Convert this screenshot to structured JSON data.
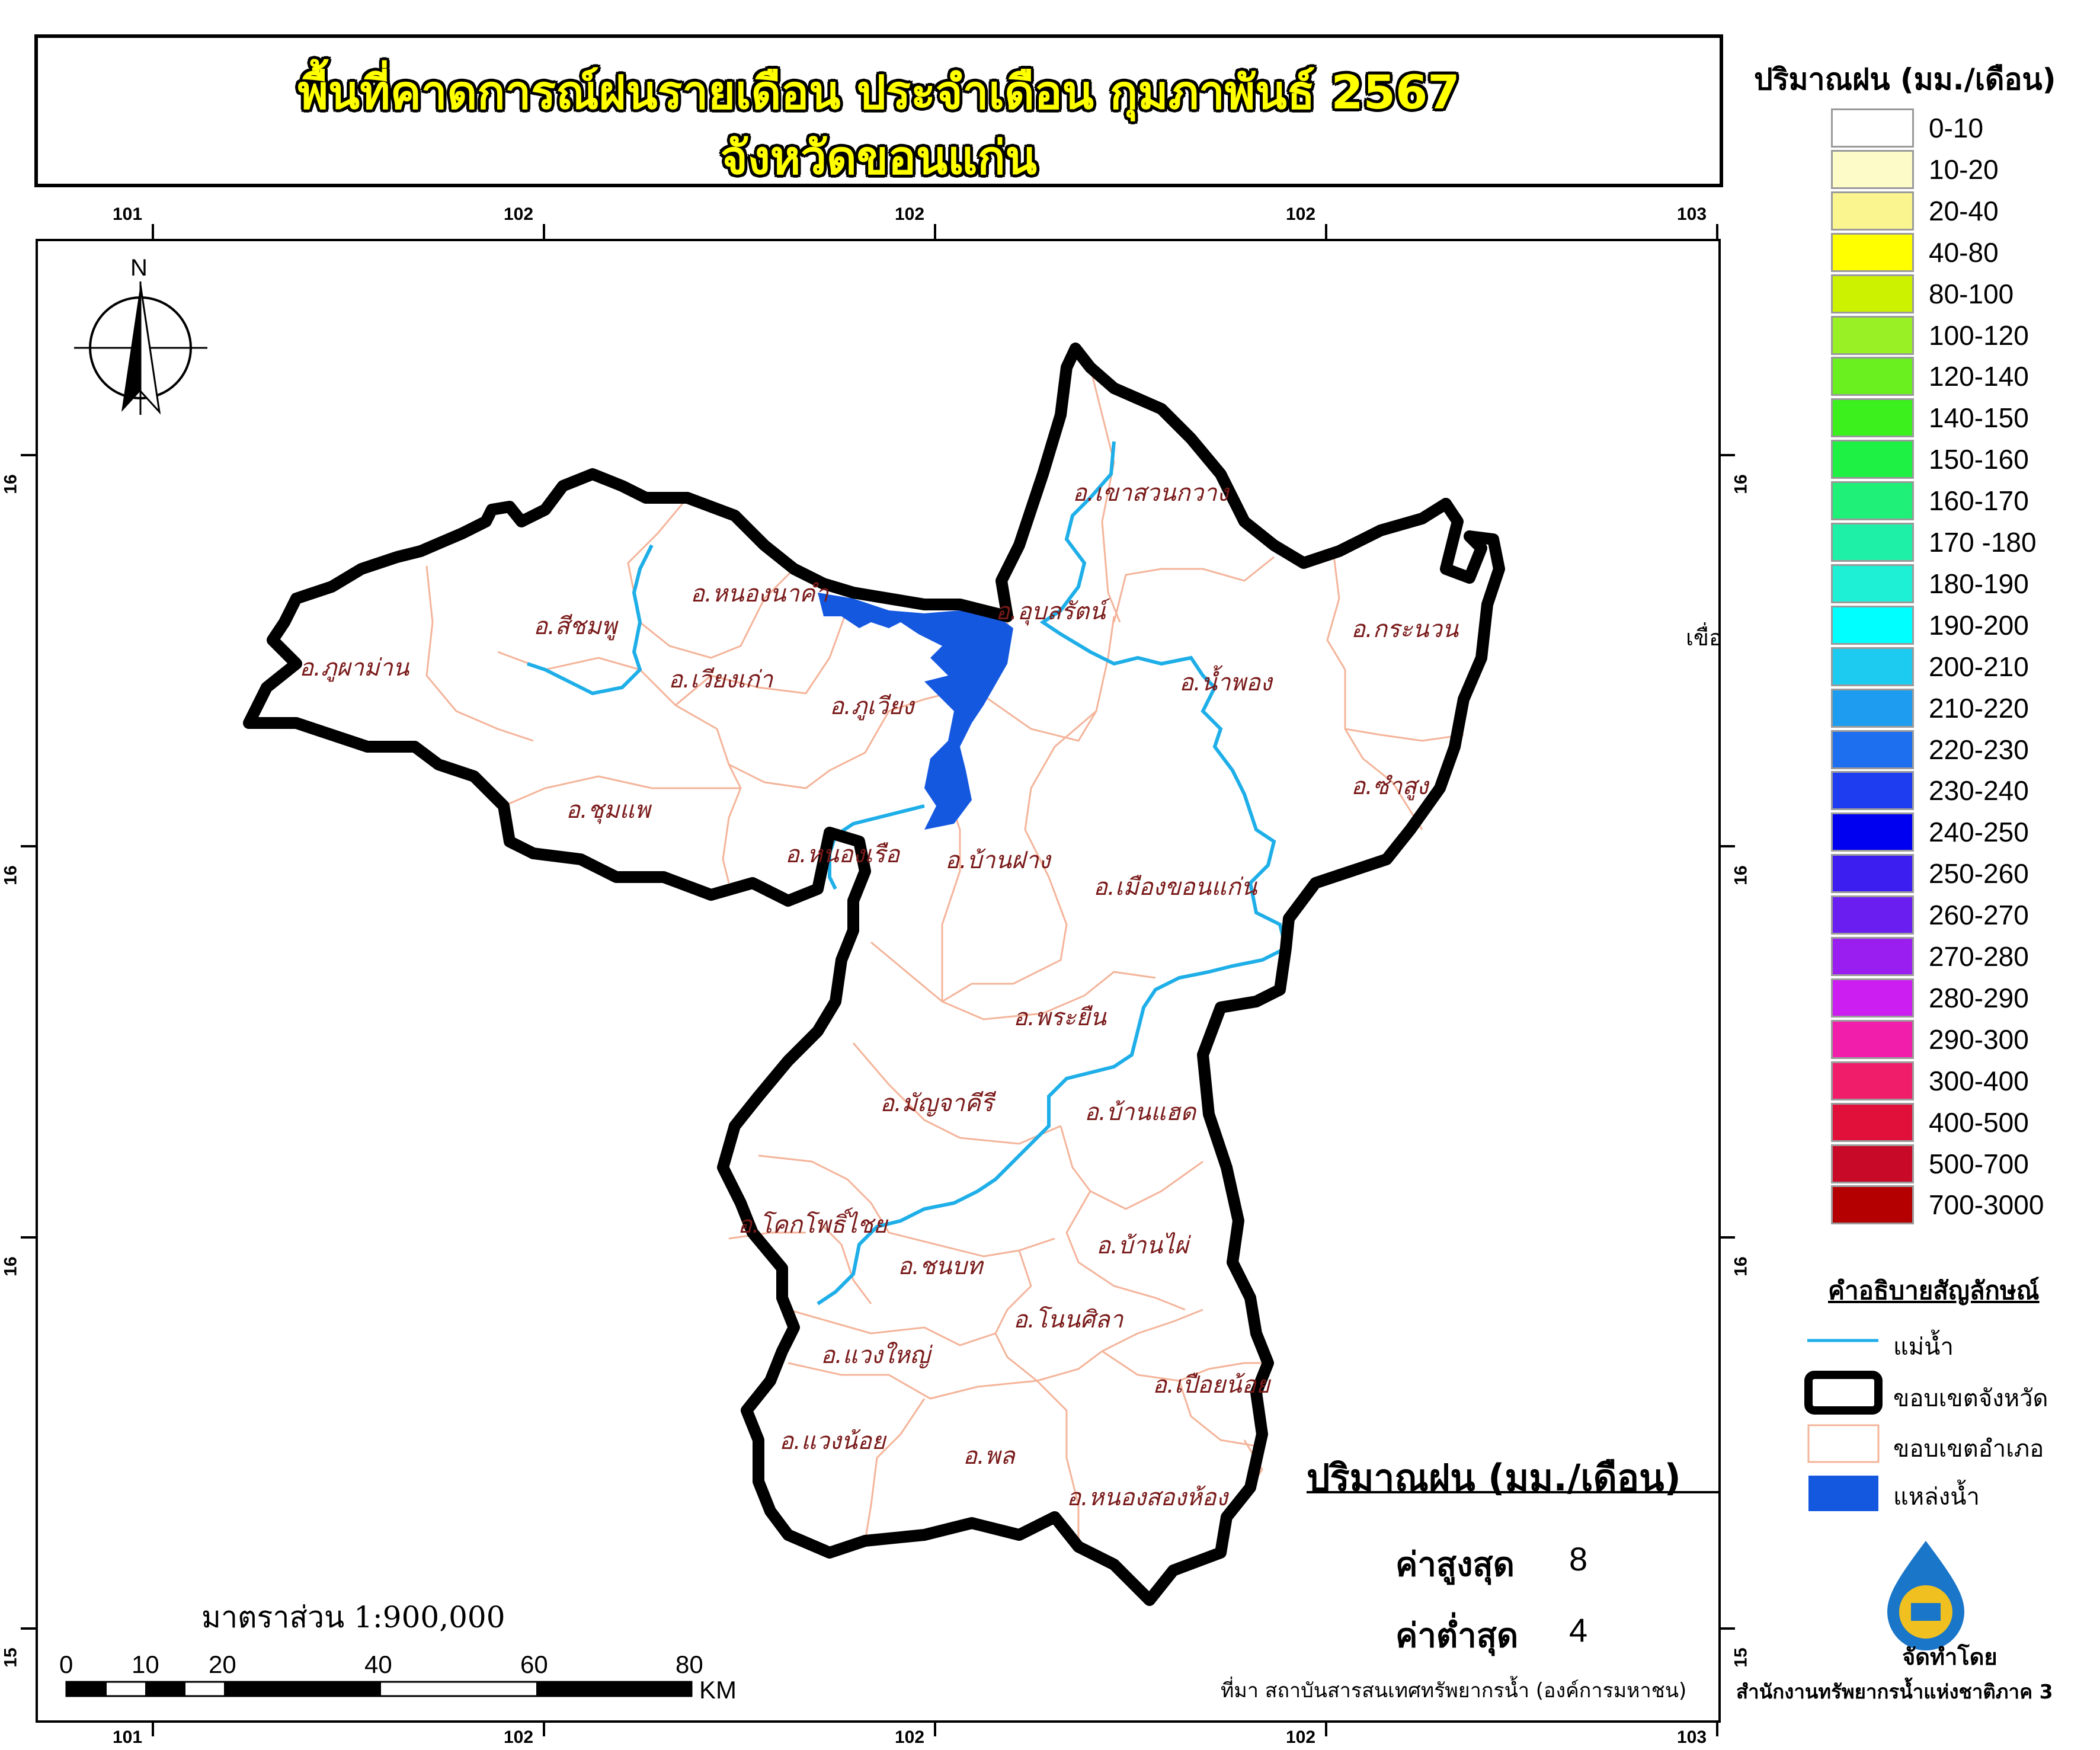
{
  "title": {
    "line1": "พื้นที่คาดการณ์ฝนรายเดือน ประจำเดือน กุมภาพันธ์ 2567",
    "line2": "จังหวัดขอนแก่น"
  },
  "north_arrow": {
    "label": "N"
  },
  "graticule": {
    "top_ticks": [
      "101",
      "102",
      "102",
      "102",
      "103"
    ],
    "bottom_ticks": [
      "101",
      "102",
      "102",
      "102",
      "103"
    ],
    "left_ticks": [
      "16",
      "16",
      "16",
      "15"
    ],
    "right_ticks": [
      "16",
      "16",
      "16",
      "15"
    ]
  },
  "districts": [
    "อ.เขาสวนกวาง",
    "อ.หนองนาคำ",
    "อ.อุบลรัตน์",
    "อ.สีชมพู",
    "อ.กระนวน",
    "อ.ภูผาม่าน",
    "อ.เวียงเก่า",
    "อ.น้ำพอง",
    "อ.ภูเวียง",
    "อ.ซำสูง",
    "อ.ชุมแพ",
    "อ.หนองเรือ",
    "อ.บ้านฝาง",
    "อ.เมืองขอนแก่น",
    "อ.พระยืน",
    "อ.มัญจาคีรี",
    "อ.บ้านแฮด",
    "อ.โคกโพธิ์ไชย",
    "อ.ชนบท",
    "อ.บ้านไผ่",
    "อ.โนนศิลา",
    "อ.แวงใหญ่",
    "อ.เปือยน้อย",
    "อ.แวงน้อย",
    "อ.พล",
    "อ.หนองสองห้อง"
  ],
  "rain_legend": {
    "title": "ปริมาณฝน (มม./เดือน)",
    "classes": [
      {
        "label": "0-10",
        "color": "#ffffff"
      },
      {
        "label": "10-20",
        "color": "#fdfcc8"
      },
      {
        "label": "20-40",
        "color": "#fbf590"
      },
      {
        "label": "40-80",
        "color": "#ffff00"
      },
      {
        "label": "80-100",
        "color": "#ccf200"
      },
      {
        "label": "100-120",
        "color": "#99f024"
      },
      {
        "label": "120-140",
        "color": "#6af01e"
      },
      {
        "label": "140-150",
        "color": "#3bf01c"
      },
      {
        "label": "150-160",
        "color": "#1ef044"
      },
      {
        "label": "160-170",
        "color": "#1ef078"
      },
      {
        "label": "170 -180",
        "color": "#1ef0a8"
      },
      {
        "label": "180-190",
        "color": "#1ef0d6"
      },
      {
        "label": "190-200",
        "color": "#00ffff"
      },
      {
        "label": "200-210",
        "color": "#1ecbf0"
      },
      {
        "label": "210-220",
        "color": "#1e9df0"
      },
      {
        "label": "220-230",
        "color": "#1e6ef0"
      },
      {
        "label": "230-240",
        "color": "#1e3cf0"
      },
      {
        "label": "240-250",
        "color": "#0000f0"
      },
      {
        "label": "250-260",
        "color": "#3c1ef0"
      },
      {
        "label": "260-270",
        "color": "#6a1ef0"
      },
      {
        "label": "270-280",
        "color": "#9a1ef0"
      },
      {
        "label": "280-290",
        "color": "#cc1ef0"
      },
      {
        "label": "290-300",
        "color": "#f01eaa"
      },
      {
        "label": "300-400",
        "color": "#f01e6a"
      },
      {
        "label": "400-500",
        "color": "#e0103a"
      },
      {
        "label": "500-700",
        "color": "#c80a28"
      },
      {
        "label": "700-3000",
        "color": "#b40000"
      }
    ]
  },
  "symbols": {
    "title": "คำอธิบายสัญลักษณ์",
    "river": "แม่น้ำ",
    "province_boundary": "ขอบเขตจังหวัด",
    "district_boundary": "ขอบเขตอำเภอ",
    "water_body": "แหล่งน้ำ"
  },
  "stats": {
    "title": "ปริมาณฝน (มม./เดือน)",
    "max_label": "ค่าสูงสุด",
    "max_value": "8",
    "min_label": "ค่าต่ำสุด",
    "min_value": "4"
  },
  "scale": {
    "text": "มาตราส่วน 1:900,000",
    "ticks": [
      "0",
      "10",
      "20",
      "40",
      "60",
      "80"
    ],
    "unit": "KM"
  },
  "source": "ที่มา สถาบันสารสนเทศทรัพยากรน้ำ (องค์การมหาชน)",
  "made_by": "จัดทำโดย",
  "office": "สำนักงานทรัพยากรน้ำแห่งชาติภาค 3",
  "cutoff_text": "เขื่อ",
  "colors": {
    "river": "#1eaee8",
    "province_boundary": "#000000",
    "district_boundary": "#f4b49a",
    "water_body": "#1558e0",
    "district_label": "#7a1a1a",
    "title_fill": "#ffff00"
  }
}
